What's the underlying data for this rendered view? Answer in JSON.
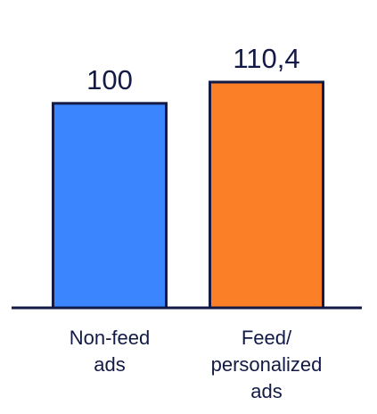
{
  "chart_data": {
    "type": "bar",
    "categories": [
      [
        "Non-feed",
        "ads"
      ],
      [
        "Feed/",
        "personalized",
        "ads"
      ]
    ],
    "values": [
      100,
      110.4
    ],
    "value_labels": [
      "100",
      "110,4"
    ],
    "bar_colors": [
      "#3b86ff",
      "#fb7f27"
    ],
    "outline_color": "#121a45",
    "text_color": "#121a45",
    "baseline_color": "#121a45",
    "ylim": [
      0,
      110.4
    ],
    "title": "",
    "xlabel": "",
    "ylabel": "",
    "grid": false,
    "legend": "none"
  }
}
